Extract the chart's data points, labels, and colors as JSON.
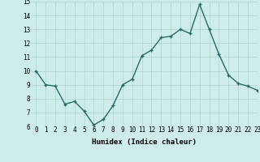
{
  "xlabel": "Humidex (Indice chaleur)",
  "x": [
    0,
    1,
    2,
    3,
    4,
    5,
    6,
    7,
    8,
    9,
    10,
    11,
    12,
    13,
    14,
    15,
    16,
    17,
    18,
    19,
    20,
    21,
    22,
    23
  ],
  "y": [
    10.0,
    9.0,
    8.9,
    7.6,
    7.8,
    7.1,
    6.1,
    6.5,
    7.5,
    9.0,
    9.4,
    11.1,
    11.5,
    12.4,
    12.5,
    13.0,
    12.7,
    14.8,
    13.0,
    11.2,
    9.7,
    9.1,
    8.9,
    8.6
  ],
  "ylim": [
    6,
    15
  ],
  "xlim": [
    -0.5,
    23
  ],
  "yticks": [
    6,
    7,
    8,
    9,
    10,
    11,
    12,
    13,
    14,
    15
  ],
  "xticks": [
    0,
    1,
    2,
    3,
    4,
    5,
    6,
    7,
    8,
    9,
    10,
    11,
    12,
    13,
    14,
    15,
    16,
    17,
    18,
    19,
    20,
    21,
    22,
    23
  ],
  "line_color": "#2a6b68",
  "marker": "+",
  "marker_size": 3.5,
  "linewidth": 1.0,
  "bg_color": "#ceecea",
  "grid_color": "#aed4d0",
  "xlabel_fontsize": 6.5,
  "tick_fontsize": 5.5
}
